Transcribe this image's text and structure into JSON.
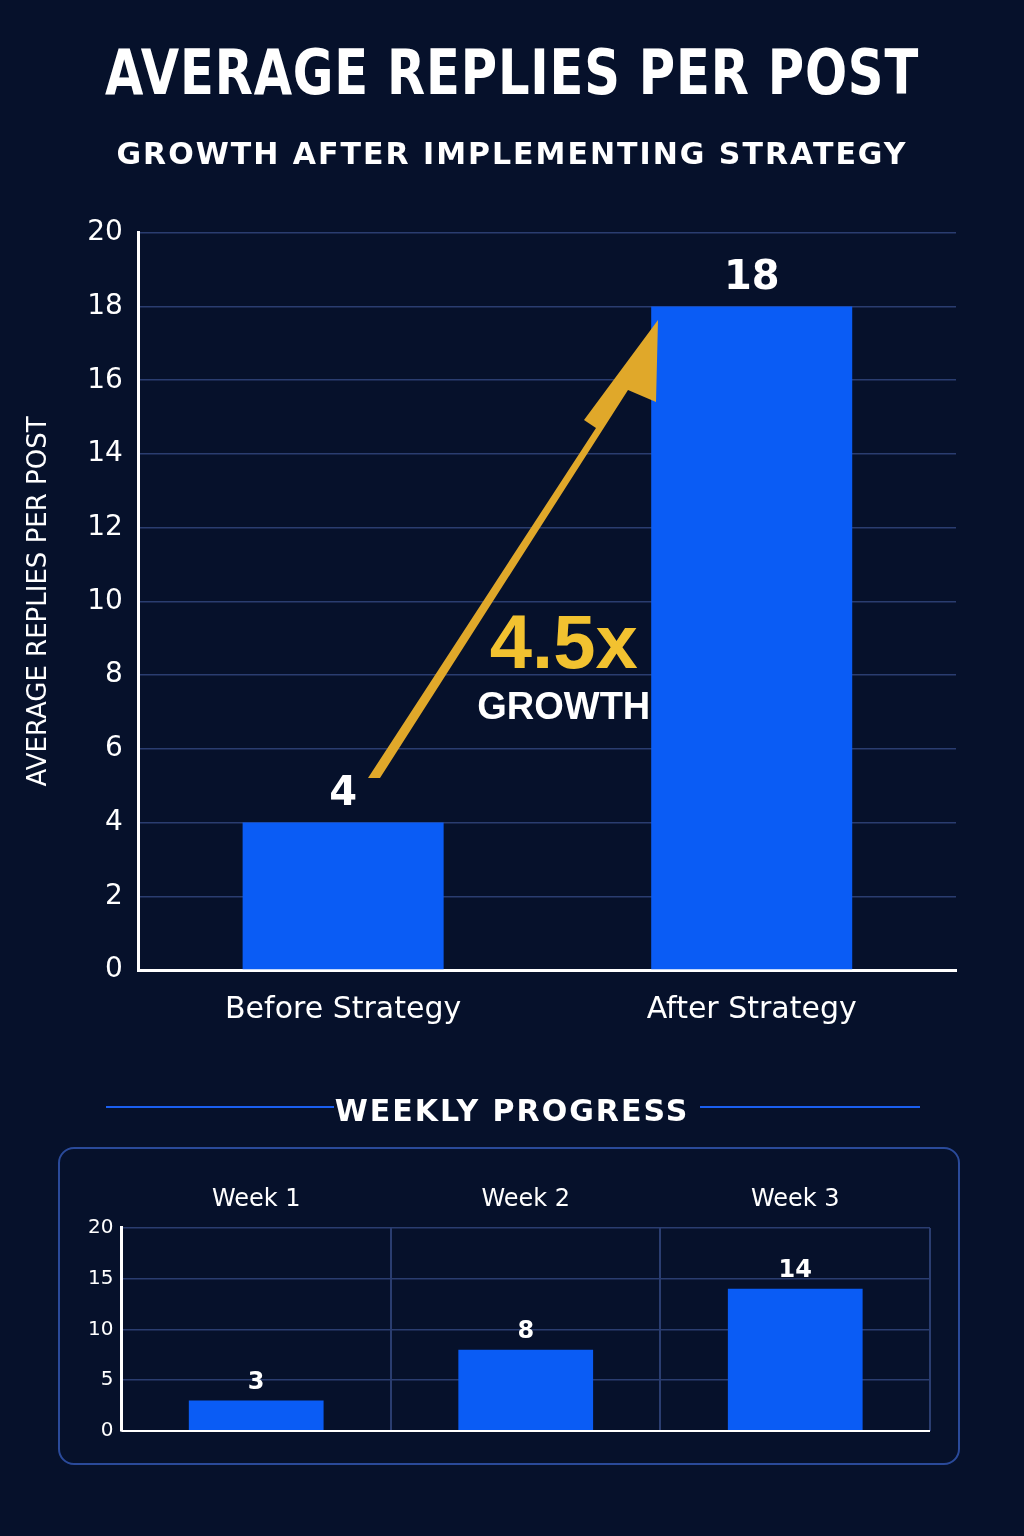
{
  "chart_data": [
    {
      "type": "bar",
      "title": "AVERAGE REPLIES PER POST",
      "subtitle": "GROWTH AFTER IMPLEMENTING STRATEGY",
      "ylabel": "AVERAGE REPLIES PER POST",
      "categories": [
        "Before Strategy",
        "After Strategy"
      ],
      "values": [
        4,
        18
      ],
      "color": "#0a5cf5",
      "ylim": [
        0,
        20
      ],
      "yticks": [
        0,
        2,
        4,
        6,
        8,
        10,
        12,
        14,
        16,
        18,
        20
      ],
      "grid": "y",
      "data_labels": true,
      "annotations": [
        "4.5x",
        "GROWTH"
      ]
    },
    {
      "type": "bar",
      "title": "WEEKLY PROGRESS",
      "categories": [
        "Week 1",
        "Week 2",
        "Week 3"
      ],
      "values": [
        3,
        8,
        14
      ],
      "color": "#0a5cf5",
      "ylim": [
        0,
        20
      ],
      "yticks": [
        0,
        5,
        10,
        15,
        20
      ],
      "grid": true,
      "data_labels": true
    }
  ]
}
